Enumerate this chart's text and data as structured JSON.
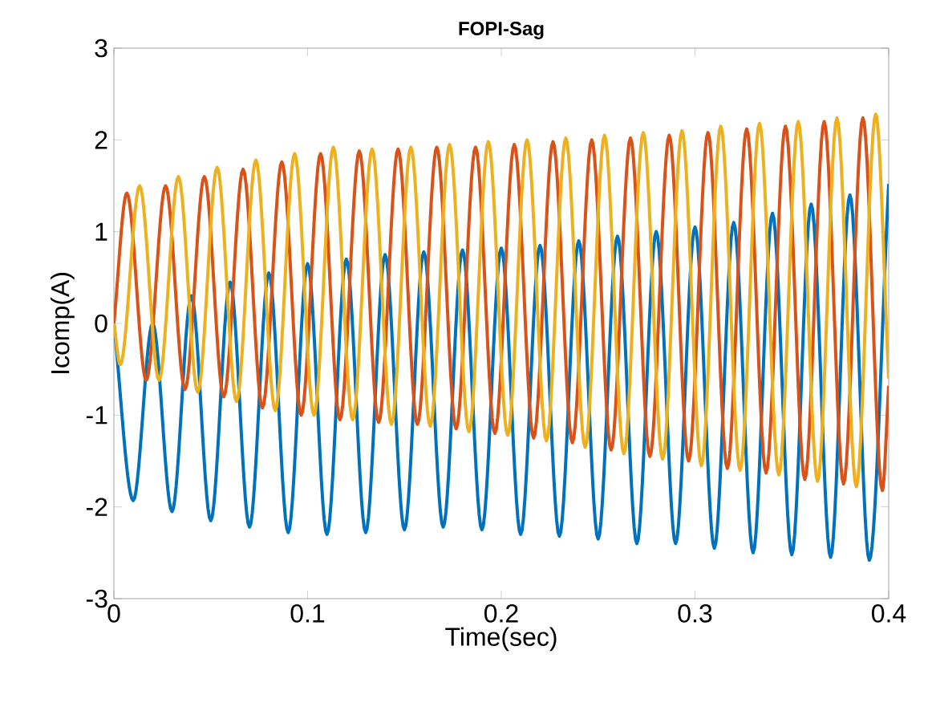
{
  "chart_data": {
    "type": "line",
    "title": "FOPI-Sag",
    "xlabel": "Time(sec)",
    "ylabel": "Icomp(A)",
    "xlim": [
      0,
      0.4
    ],
    "ylim": [
      -3,
      3
    ],
    "xticks": [
      0,
      0.1,
      0.2,
      0.3,
      0.4
    ],
    "yticks": [
      -3,
      -2,
      -1,
      0,
      1,
      2,
      3
    ],
    "series": [
      {
        "color": "#0072bd",
        "x": [
          0,
          0.01,
          0.02,
          0.03,
          0.04,
          0.05,
          0.06,
          0.07,
          0.08,
          0.09,
          0.1,
          0.11,
          0.12,
          0.13,
          0.14,
          0.15,
          0.16,
          0.17,
          0.18,
          0.19,
          0.2,
          0.21,
          0.22,
          0.23,
          0.24,
          0.25,
          0.26,
          0.27,
          0.28,
          0.29,
          0.3,
          0.31,
          0.32,
          0.33,
          0.34,
          0.35,
          0.36,
          0.37,
          0.38,
          0.39,
          0.4
        ],
        "values": [
          0,
          -1.93,
          0.0,
          -2.05,
          0.3,
          -2.15,
          0.45,
          -2.22,
          0.55,
          -2.28,
          0.65,
          -2.3,
          0.7,
          -2.28,
          0.75,
          -2.25,
          0.78,
          -2.22,
          0.8,
          -2.25,
          0.82,
          -2.3,
          0.85,
          -2.32,
          0.9,
          -2.35,
          0.95,
          -2.4,
          1.0,
          -2.4,
          1.05,
          -2.45,
          1.1,
          -2.5,
          1.2,
          -2.52,
          1.3,
          -2.55,
          1.4,
          -2.58,
          1.52
        ]
      },
      {
        "color": "#d95319",
        "x": [
          0,
          0.0067,
          0.0167,
          0.0267,
          0.0367,
          0.0467,
          0.0567,
          0.0667,
          0.0767,
          0.0867,
          0.0967,
          0.1067,
          0.1167,
          0.1267,
          0.1367,
          0.1467,
          0.1567,
          0.1667,
          0.1767,
          0.1867,
          0.1967,
          0.2067,
          0.2167,
          0.2267,
          0.2367,
          0.2467,
          0.2567,
          0.2667,
          0.2767,
          0.2867,
          0.2967,
          0.3067,
          0.3167,
          0.3267,
          0.3367,
          0.3467,
          0.3567,
          0.3667,
          0.3767,
          0.3867,
          0.3967,
          0.4
        ],
        "values": [
          0,
          1.42,
          -0.62,
          1.5,
          -0.72,
          1.6,
          -0.8,
          1.68,
          -0.92,
          1.76,
          -1.0,
          1.85,
          -1.05,
          1.88,
          -1.08,
          1.9,
          -1.1,
          1.92,
          -1.15,
          1.92,
          -1.2,
          1.95,
          -1.25,
          1.98,
          -1.3,
          2.0,
          -1.38,
          2.02,
          -1.45,
          2.05,
          -1.5,
          2.08,
          -1.58,
          2.12,
          -1.63,
          2.15,
          -1.7,
          2.2,
          -1.75,
          2.24,
          -1.82,
          -0.68
        ]
      },
      {
        "color": "#edb120",
        "x": [
          0,
          0.0033,
          0.0133,
          0.0233,
          0.0333,
          0.0433,
          0.0533,
          0.0633,
          0.0733,
          0.0833,
          0.0933,
          0.1033,
          0.1133,
          0.1233,
          0.1333,
          0.1433,
          0.1533,
          0.1633,
          0.1733,
          0.1833,
          0.1933,
          0.2033,
          0.2133,
          0.2233,
          0.2333,
          0.2433,
          0.2533,
          0.2633,
          0.2733,
          0.2833,
          0.2933,
          0.3033,
          0.3133,
          0.3233,
          0.3333,
          0.3433,
          0.3533,
          0.3633,
          0.3733,
          0.3833,
          0.3933,
          0.4
        ],
        "values": [
          0,
          -0.45,
          1.5,
          -0.62,
          1.6,
          -0.75,
          1.7,
          -0.85,
          1.78,
          -0.95,
          1.85,
          -1.0,
          1.92,
          -1.05,
          1.9,
          -1.1,
          1.92,
          -1.12,
          1.95,
          -1.18,
          1.98,
          -1.22,
          2.0,
          -1.28,
          2.02,
          -1.35,
          2.05,
          -1.42,
          2.08,
          -1.48,
          2.1,
          -1.55,
          2.15,
          -1.6,
          2.18,
          -1.65,
          2.2,
          -1.72,
          2.24,
          -1.78,
          2.28,
          -0.6
        ]
      }
    ]
  }
}
